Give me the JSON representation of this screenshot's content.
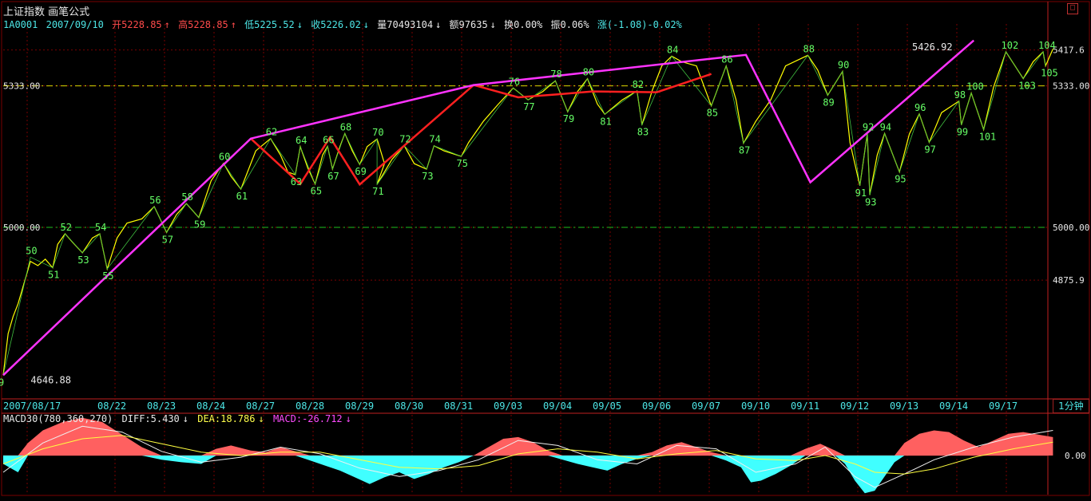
{
  "header": {
    "title": "上证指数",
    "formula": "画笔公式",
    "code": "1A0001",
    "date": "2007/09/10",
    "open": "开5228.85",
    "high": "高5228.85",
    "low": "低5225.52",
    "close": "收5226.02",
    "volume": "量70493104",
    "amount": "额97635",
    "turnover": "换0.00%",
    "amplitude": "振0.06%",
    "change": "涨(-1.08)-0.02%",
    "zoom_icon": "square-icon"
  },
  "indicator": {
    "name": "MACD30(780,360,270)",
    "diff": "DIFF:5.430",
    "dea": "DEA:18.786",
    "macd": "MACD:-26.712"
  },
  "period_button": "1分钟",
  "colors": {
    "price": "#ffff00",
    "pen": "#ff33ff",
    "segment": "#ff2020",
    "marker": "#66ff66",
    "grid": "#7a0000",
    "up": "#ff6060",
    "down": "#40ffff"
  },
  "chart_data": {
    "type": "line",
    "title": "上证指数 画笔公式",
    "ylim": [
      4600,
      5460
    ],
    "ytick_labels": [
      "5417.6",
      "5333.00",
      "5000.00",
      "4875.9"
    ],
    "yticks": [
      5417.6,
      5333.0,
      5000.0,
      4875.9
    ],
    "hlines": [
      {
        "label": "5333.00",
        "value": 5333.0
      },
      {
        "label": "5000.00",
        "value": 5000.0
      }
    ],
    "x_labels": [
      "2007/08/17",
      "08/22",
      "08/23",
      "08/24",
      "08/27",
      "08/28",
      "08/29",
      "08/30",
      "08/31",
      "09/03",
      "09/04",
      "09/05",
      "09/06",
      "09/07",
      "09/10",
      "09/11",
      "09/12",
      "09/13",
      "09/14",
      "09/17"
    ],
    "price_labels": [
      {
        "text": "4646.88",
        "x": 1.2,
        "y": 4640
      },
      {
        "text": "5426.92",
        "x": 19.0,
        "y": 5424
      }
    ],
    "pen_line": [
      [
        0.0,
        4652
      ],
      [
        5.0,
        5209
      ],
      [
        9.5,
        5335
      ],
      [
        15.0,
        5406
      ],
      [
        16.3,
        5106
      ],
      [
        19.6,
        5440
      ]
    ],
    "segment_line": [
      [
        5.0,
        5209
      ],
      [
        6.0,
        5102
      ],
      [
        6.6,
        5212
      ],
      [
        7.2,
        5101
      ],
      [
        9.5,
        5335
      ],
      [
        10.4,
        5306
      ],
      [
        11.2,
        5313
      ],
      [
        11.9,
        5320
      ],
      [
        13.2,
        5318
      ],
      [
        14.3,
        5361
      ]
    ],
    "turning_points": [
      {
        "label": "9",
        "x": 0.0,
        "y": 4652,
        "pos": "below"
      },
      {
        "label": "50",
        "x": 0.55,
        "y": 4930,
        "pos": "above"
      },
      {
        "label": "51",
        "x": 1.0,
        "y": 4905,
        "pos": "below"
      },
      {
        "label": "52",
        "x": 1.25,
        "y": 4985,
        "pos": "above"
      },
      {
        "label": "53",
        "x": 1.6,
        "y": 4940,
        "pos": "below"
      },
      {
        "label": "54",
        "x": 1.95,
        "y": 4985,
        "pos": "above"
      },
      {
        "label": "55",
        "x": 2.1,
        "y": 4902,
        "pos": "below"
      },
      {
        "label": "56",
        "x": 3.05,
        "y": 5049,
        "pos": "above"
      },
      {
        "label": "57",
        "x": 3.3,
        "y": 4988,
        "pos": "below"
      },
      {
        "label": "58",
        "x": 3.7,
        "y": 5056,
        "pos": "above"
      },
      {
        "label": "59",
        "x": 3.95,
        "y": 5023,
        "pos": "below"
      },
      {
        "label": "60",
        "x": 4.45,
        "y": 5151,
        "pos": "above"
      },
      {
        "label": "61",
        "x": 4.8,
        "y": 5090,
        "pos": "below"
      },
      {
        "label": "62",
        "x": 5.4,
        "y": 5209,
        "pos": "above"
      },
      {
        "label": "63",
        "x": 5.9,
        "y": 5124,
        "pos": "below"
      },
      {
        "label": "64",
        "x": 6.0,
        "y": 5190,
        "pos": "above"
      },
      {
        "label": "65",
        "x": 6.3,
        "y": 5102,
        "pos": "below"
      },
      {
        "label": "66",
        "x": 6.55,
        "y": 5191,
        "pos": "above"
      },
      {
        "label": "67",
        "x": 6.65,
        "y": 5137,
        "pos": "below"
      },
      {
        "label": "68",
        "x": 6.9,
        "y": 5221,
        "pos": "above"
      },
      {
        "label": "69",
        "x": 7.2,
        "y": 5148,
        "pos": "below"
      },
      {
        "label": "70",
        "x": 7.55,
        "y": 5208,
        "pos": "above"
      },
      {
        "label": "71",
        "x": 7.55,
        "y": 5101,
        "pos": "below"
      },
      {
        "label": "72",
        "x": 8.1,
        "y": 5192,
        "pos": "above"
      },
      {
        "label": "73",
        "x": 8.55,
        "y": 5137,
        "pos": "below"
      },
      {
        "label": "74",
        "x": 8.7,
        "y": 5192,
        "pos": "above"
      },
      {
        "label": "75",
        "x": 9.25,
        "y": 5167,
        "pos": "below"
      },
      {
        "label": "76",
        "x": 10.3,
        "y": 5328,
        "pos": "above"
      },
      {
        "label": "77",
        "x": 10.6,
        "y": 5300,
        "pos": "below"
      },
      {
        "label": "78",
        "x": 11.15,
        "y": 5345,
        "pos": "above"
      },
      {
        "label": "79",
        "x": 11.4,
        "y": 5272,
        "pos": "below"
      },
      {
        "label": "80",
        "x": 11.8,
        "y": 5350,
        "pos": "above"
      },
      {
        "label": "81",
        "x": 12.15,
        "y": 5266,
        "pos": "below"
      },
      {
        "label": "82",
        "x": 12.8,
        "y": 5321,
        "pos": "above"
      },
      {
        "label": "83",
        "x": 12.9,
        "y": 5241,
        "pos": "below"
      },
      {
        "label": "84",
        "x": 13.5,
        "y": 5403,
        "pos": "above"
      },
      {
        "label": "85",
        "x": 14.3,
        "y": 5286,
        "pos": "below"
      },
      {
        "label": "86",
        "x": 14.6,
        "y": 5380,
        "pos": "above"
      },
      {
        "label": "87",
        "x": 14.95,
        "y": 5198,
        "pos": "below"
      },
      {
        "label": "88",
        "x": 16.25,
        "y": 5405,
        "pos": "above"
      },
      {
        "label": "89",
        "x": 16.65,
        "y": 5311,
        "pos": "below"
      },
      {
        "label": "90",
        "x": 16.95,
        "y": 5367,
        "pos": "above"
      },
      {
        "label": "91",
        "x": 17.3,
        "y": 5098,
        "pos": "below"
      },
      {
        "label": "92",
        "x": 17.45,
        "y": 5221,
        "pos": "above"
      },
      {
        "label": "93",
        "x": 17.5,
        "y": 5076,
        "pos": "below"
      },
      {
        "label": "94",
        "x": 17.8,
        "y": 5221,
        "pos": "above"
      },
      {
        "label": "95",
        "x": 18.1,
        "y": 5130,
        "pos": "below"
      },
      {
        "label": "96",
        "x": 18.5,
        "y": 5267,
        "pos": "above"
      },
      {
        "label": "97",
        "x": 18.7,
        "y": 5200,
        "pos": "below"
      },
      {
        "label": "98",
        "x": 19.3,
        "y": 5297,
        "pos": "above"
      },
      {
        "label": "99",
        "x": 19.35,
        "y": 5241,
        "pos": "below"
      },
      {
        "label": "100",
        "x": 19.55,
        "y": 5316,
        "pos": "above"
      },
      {
        "label": "101",
        "x": 19.8,
        "y": 5230,
        "pos": "below"
      },
      {
        "label": "102",
        "x": 20.25,
        "y": 5413,
        "pos": "above"
      },
      {
        "label": "103",
        "x": 20.6,
        "y": 5350,
        "pos": "below"
      },
      {
        "label": "104",
        "x": 21.0,
        "y": 5413,
        "pos": "above"
      },
      {
        "label": "105",
        "x": 21.05,
        "y": 5380,
        "pos": "below"
      }
    ],
    "price_series": [
      [
        0.0,
        4652
      ],
      [
        0.1,
        4750
      ],
      [
        0.2,
        4790
      ],
      [
        0.3,
        4820
      ],
      [
        0.45,
        4880
      ],
      [
        0.55,
        4920
      ],
      [
        0.7,
        4910
      ],
      [
        0.85,
        4925
      ],
      [
        1.0,
        4905
      ],
      [
        1.1,
        4960
      ],
      [
        1.25,
        4985
      ],
      [
        1.4,
        4965
      ],
      [
        1.6,
        4940
      ],
      [
        1.8,
        4975
      ],
      [
        1.95,
        4985
      ],
      [
        2.1,
        4902
      ],
      [
        2.3,
        4975
      ],
      [
        2.5,
        5010
      ],
      [
        2.8,
        5020
      ],
      [
        3.05,
        5049
      ],
      [
        3.3,
        4988
      ],
      [
        3.5,
        5030
      ],
      [
        3.7,
        5056
      ],
      [
        3.95,
        5023
      ],
      [
        4.2,
        5110
      ],
      [
        4.45,
        5151
      ],
      [
        4.6,
        5120
      ],
      [
        4.8,
        5090
      ],
      [
        5.1,
        5180
      ],
      [
        5.4,
        5209
      ],
      [
        5.6,
        5170
      ],
      [
        5.75,
        5130
      ],
      [
        5.9,
        5124
      ],
      [
        6.0,
        5190
      ],
      [
        6.15,
        5140
      ],
      [
        6.3,
        5102
      ],
      [
        6.45,
        5170
      ],
      [
        6.55,
        5191
      ],
      [
        6.65,
        5137
      ],
      [
        6.8,
        5190
      ],
      [
        6.9,
        5221
      ],
      [
        7.05,
        5180
      ],
      [
        7.2,
        5148
      ],
      [
        7.35,
        5190
      ],
      [
        7.55,
        5208
      ],
      [
        7.7,
        5150
      ],
      [
        7.55,
        5101
      ],
      [
        7.85,
        5160
      ],
      [
        8.1,
        5192
      ],
      [
        8.3,
        5150
      ],
      [
        8.55,
        5137
      ],
      [
        8.7,
        5192
      ],
      [
        8.9,
        5180
      ],
      [
        9.25,
        5167
      ],
      [
        9.4,
        5200
      ],
      [
        9.7,
        5250
      ],
      [
        10.0,
        5290
      ],
      [
        10.3,
        5328
      ],
      [
        10.6,
        5300
      ],
      [
        10.9,
        5320
      ],
      [
        11.15,
        5345
      ],
      [
        11.4,
        5272
      ],
      [
        11.6,
        5320
      ],
      [
        11.8,
        5350
      ],
      [
        12.0,
        5290
      ],
      [
        12.15,
        5266
      ],
      [
        12.5,
        5300
      ],
      [
        12.8,
        5321
      ],
      [
        12.9,
        5241
      ],
      [
        13.1,
        5320
      ],
      [
        13.3,
        5380
      ],
      [
        13.5,
        5403
      ],
      [
        13.7,
        5390
      ],
      [
        14.0,
        5380
      ],
      [
        14.3,
        5286
      ],
      [
        14.6,
        5380
      ],
      [
        14.8,
        5300
      ],
      [
        14.95,
        5198
      ],
      [
        15.2,
        5250
      ],
      [
        15.5,
        5300
      ],
      [
        15.8,
        5380
      ],
      [
        16.25,
        5405
      ],
      [
        16.45,
        5370
      ],
      [
        16.65,
        5311
      ],
      [
        16.95,
        5367
      ],
      [
        17.1,
        5200
      ],
      [
        17.3,
        5098
      ],
      [
        17.45,
        5221
      ],
      [
        17.5,
        5076
      ],
      [
        17.65,
        5170
      ],
      [
        17.8,
        5221
      ],
      [
        18.1,
        5130
      ],
      [
        18.3,
        5220
      ],
      [
        18.5,
        5267
      ],
      [
        18.7,
        5200
      ],
      [
        18.95,
        5270
      ],
      [
        19.3,
        5297
      ],
      [
        19.35,
        5241
      ],
      [
        19.55,
        5316
      ],
      [
        19.8,
        5230
      ],
      [
        20.0,
        5330
      ],
      [
        20.25,
        5413
      ],
      [
        20.6,
        5350
      ],
      [
        20.8,
        5390
      ],
      [
        21.0,
        5413
      ],
      [
        21.05,
        5380
      ],
      [
        21.2,
        5420
      ]
    ],
    "macd": {
      "ylabel": "0.00",
      "hist": [
        [
          0.0,
          -10
        ],
        [
          0.3,
          -20
        ],
        [
          0.5,
          15
        ],
        [
          0.8,
          30
        ],
        [
          1.2,
          40
        ],
        [
          1.6,
          45
        ],
        [
          2.0,
          40
        ],
        [
          2.4,
          25
        ],
        [
          2.8,
          10
        ],
        [
          3.2,
          -5
        ],
        [
          3.6,
          -8
        ],
        [
          4.0,
          -10
        ],
        [
          4.3,
          8
        ],
        [
          4.6,
          12
        ],
        [
          5.0,
          6
        ],
        [
          5.3,
          4
        ],
        [
          5.6,
          10
        ],
        [
          5.9,
          5
        ],
        [
          6.2,
          -6
        ],
        [
          6.5,
          -12
        ],
        [
          6.8,
          -18
        ],
        [
          7.1,
          -26
        ],
        [
          7.4,
          -34
        ],
        [
          7.7,
          -26
        ],
        [
          8.0,
          -20
        ],
        [
          8.3,
          -28
        ],
        [
          8.6,
          -22
        ],
        [
          8.9,
          -14
        ],
        [
          9.2,
          -8
        ],
        [
          9.5,
          0
        ],
        [
          9.8,
          10
        ],
        [
          10.1,
          20
        ],
        [
          10.4,
          22
        ],
        [
          10.7,
          16
        ],
        [
          11.0,
          6
        ],
        [
          11.3,
          -5
        ],
        [
          11.6,
          -10
        ],
        [
          11.9,
          -14
        ],
        [
          12.2,
          -18
        ],
        [
          12.5,
          -10
        ],
        [
          12.8,
          -4
        ],
        [
          13.1,
          4
        ],
        [
          13.4,
          12
        ],
        [
          13.7,
          16
        ],
        [
          14.0,
          10
        ],
        [
          14.3,
          4
        ],
        [
          14.6,
          -6
        ],
        [
          14.9,
          -14
        ],
        [
          15.1,
          -32
        ],
        [
          15.3,
          -30
        ],
        [
          15.6,
          -22
        ],
        [
          15.9,
          -12
        ],
        [
          16.2,
          8
        ],
        [
          16.5,
          14
        ],
        [
          16.8,
          6
        ],
        [
          17.0,
          -10
        ],
        [
          17.2,
          -30
        ],
        [
          17.4,
          -45
        ],
        [
          17.6,
          -42
        ],
        [
          17.8,
          -25
        ],
        [
          18.0,
          -8
        ],
        [
          18.2,
          15
        ],
        [
          18.5,
          26
        ],
        [
          18.8,
          30
        ],
        [
          19.1,
          28
        ],
        [
          19.4,
          18
        ],
        [
          19.7,
          10
        ],
        [
          20.0,
          18
        ],
        [
          20.3,
          26
        ],
        [
          20.6,
          28
        ],
        [
          20.9,
          25
        ],
        [
          21.2,
          22
        ]
      ],
      "diff": [
        [
          0.0,
          -20
        ],
        [
          0.8,
          15
        ],
        [
          1.6,
          35
        ],
        [
          2.4,
          28
        ],
        [
          3.2,
          5
        ],
        [
          4.0,
          -8
        ],
        [
          4.8,
          -2
        ],
        [
          5.6,
          10
        ],
        [
          6.4,
          2
        ],
        [
          7.2,
          -15
        ],
        [
          8.0,
          -25
        ],
        [
          8.8,
          -18
        ],
        [
          9.6,
          -5
        ],
        [
          10.4,
          18
        ],
        [
          11.2,
          12
        ],
        [
          12.0,
          -5
        ],
        [
          12.8,
          -10
        ],
        [
          13.6,
          12
        ],
        [
          14.4,
          8
        ],
        [
          15.2,
          -20
        ],
        [
          16.0,
          -10
        ],
        [
          16.6,
          10
        ],
        [
          17.2,
          -25
        ],
        [
          17.6,
          -38
        ],
        [
          18.2,
          -22
        ],
        [
          18.8,
          -5
        ],
        [
          19.6,
          10
        ],
        [
          20.4,
          22
        ],
        [
          21.2,
          30
        ]
      ],
      "dea": [
        [
          0.0,
          -10
        ],
        [
          0.8,
          8
        ],
        [
          1.6,
          20
        ],
        [
          2.4,
          24
        ],
        [
          3.2,
          14
        ],
        [
          4.0,
          4
        ],
        [
          4.8,
          0
        ],
        [
          5.6,
          4
        ],
        [
          6.4,
          4
        ],
        [
          7.2,
          -5
        ],
        [
          8.0,
          -14
        ],
        [
          8.8,
          -16
        ],
        [
          9.6,
          -12
        ],
        [
          10.4,
          2
        ],
        [
          11.2,
          8
        ],
        [
          12.0,
          4
        ],
        [
          12.8,
          -4
        ],
        [
          13.6,
          2
        ],
        [
          14.4,
          6
        ],
        [
          15.2,
          -4
        ],
        [
          16.0,
          -6
        ],
        [
          16.6,
          0
        ],
        [
          17.2,
          -10
        ],
        [
          17.6,
          -20
        ],
        [
          18.2,
          -22
        ],
        [
          18.8,
          -16
        ],
        [
          19.6,
          -2
        ],
        [
          20.4,
          8
        ],
        [
          21.2,
          16
        ]
      ]
    }
  }
}
